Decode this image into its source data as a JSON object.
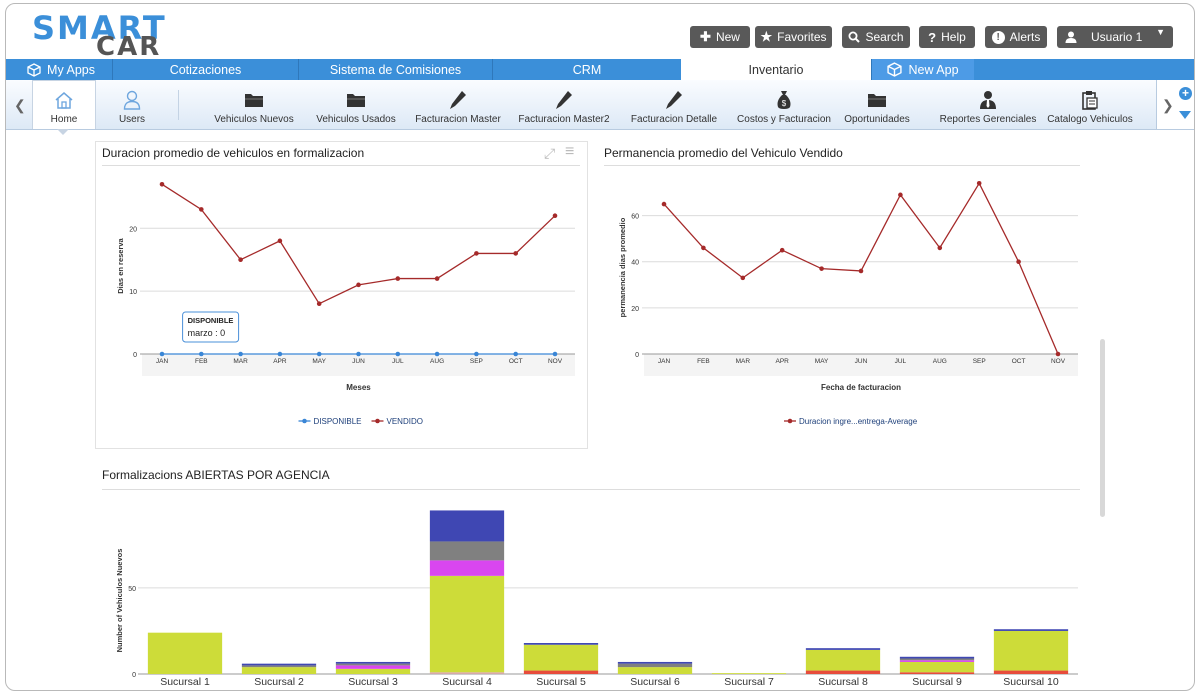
{
  "logo": {
    "line1": "SMART",
    "line2": "CAR"
  },
  "toolbar": {
    "new_label": "New",
    "favorites_label": "Favorites",
    "search_label": "Search",
    "help_label": "Help",
    "alerts_label": "Alerts",
    "user_label": "Usuario 1"
  },
  "tabs": [
    "My Apps",
    "Cotizaciones",
    "Sistema de Comisiones",
    "CRM",
    "Inventario",
    "New App"
  ],
  "apps": [
    "Home",
    "Users",
    "Vehiculos Nuevos",
    "Vehiculos Usados",
    "Facturacion Master",
    "Facturacion Master2",
    "Facturacion Detalle",
    "Costos y Facturacion",
    "Oportunidades",
    "Reportes Gerenciales",
    "Catalogo Vehiculos"
  ],
  "colors": {
    "accent": "#3b8fd9",
    "line_red": "#a52a2a",
    "line_blue": "#3a86d6"
  },
  "chart1": {
    "title": "Duracion promedio de vehiculos en formalizacion",
    "tooltip_title": "DISPONIBLE",
    "tooltip_text": "marzo : 0",
    "chart_data": {
      "type": "line",
      "title": "Duracion promedio de vehiculos en formalizacion",
      "xlabel": "Meses",
      "ylabel": "Dias en reserva",
      "categories": [
        "JAN",
        "FEB",
        "MAR",
        "APR",
        "MAY",
        "JUN",
        "JUL",
        "AUG",
        "SEP",
        "OCT",
        "NOV"
      ],
      "ylim": [
        0,
        28
      ],
      "yticks": [
        0,
        10,
        20
      ],
      "grid": true,
      "legend": "bottom",
      "series": [
        {
          "name": "DISPONIBLE",
          "color": "#3a86d6",
          "values": [
            0,
            0,
            0,
            0,
            0,
            0,
            0,
            0,
            0,
            0,
            0
          ]
        },
        {
          "name": "VENDIDO",
          "color": "#a52a2a",
          "values": [
            27,
            23,
            15,
            18,
            8,
            11,
            12,
            12,
            16,
            16,
            22
          ]
        }
      ]
    }
  },
  "chart2": {
    "title": "Permanencia promedio del Vehiculo Vendido",
    "chart_data": {
      "type": "line",
      "title": "Permanencia promedio del Vehiculo Vendido",
      "xlabel": "Fecha de facturacion",
      "ylabel": "permanencia dias promedio",
      "categories": [
        "JAN",
        "FEB",
        "MAR",
        "APR",
        "MAY",
        "JUN",
        "JUL",
        "AUG",
        "SEP",
        "OCT",
        "NOV"
      ],
      "ylim": [
        0,
        75
      ],
      "yticks": [
        0,
        20,
        40,
        60
      ],
      "grid": true,
      "legend": "bottom",
      "series": [
        {
          "name": "Duracion ingre...entrega-Average",
          "color": "#a52a2a",
          "values": [
            65,
            46,
            33,
            45,
            37,
            36,
            69,
            46,
            74,
            40,
            0
          ]
        }
      ]
    }
  },
  "chart3": {
    "title": "Formalizacions ABIERTAS POR AGENCIA",
    "chart_data": {
      "type": "bar",
      "stacked": true,
      "ylabel": "Number of Vehiculos Nuevos",
      "categories": [
        "Sucursal 1",
        "Sucursal 2",
        "Sucursal 3",
        "Sucursal 4",
        "Sucursal 5",
        "Sucursal 6",
        "Sucursal 7",
        "Sucursal 8",
        "Sucursal 9",
        "Sucursal 10"
      ],
      "ylim": [
        0,
        97
      ],
      "yticks": [
        0,
        50
      ],
      "grid": true,
      "series": [
        {
          "color": "#e74c3c",
          "values": [
            0,
            0,
            0,
            0,
            2,
            0,
            0,
            2,
            1,
            2
          ]
        },
        {
          "color": "#d8a8a8",
          "values": [
            0,
            0,
            0,
            1,
            0,
            0,
            0,
            0,
            0,
            0
          ]
        },
        {
          "color": "#cddc39",
          "values": [
            24,
            4,
            3,
            56,
            15,
            4,
            0.5,
            12,
            6,
            23
          ]
        },
        {
          "color": "#d946ef",
          "values": [
            0,
            0,
            2,
            9,
            0,
            0,
            0,
            0,
            1,
            0
          ]
        },
        {
          "color": "#808080",
          "values": [
            0,
            1,
            1,
            11,
            0,
            2,
            0,
            0,
            1,
            0
          ]
        },
        {
          "color": "#3f47b3",
          "values": [
            0,
            1,
            1,
            18,
            1,
            1,
            0,
            1,
            1,
            1
          ]
        }
      ]
    }
  }
}
